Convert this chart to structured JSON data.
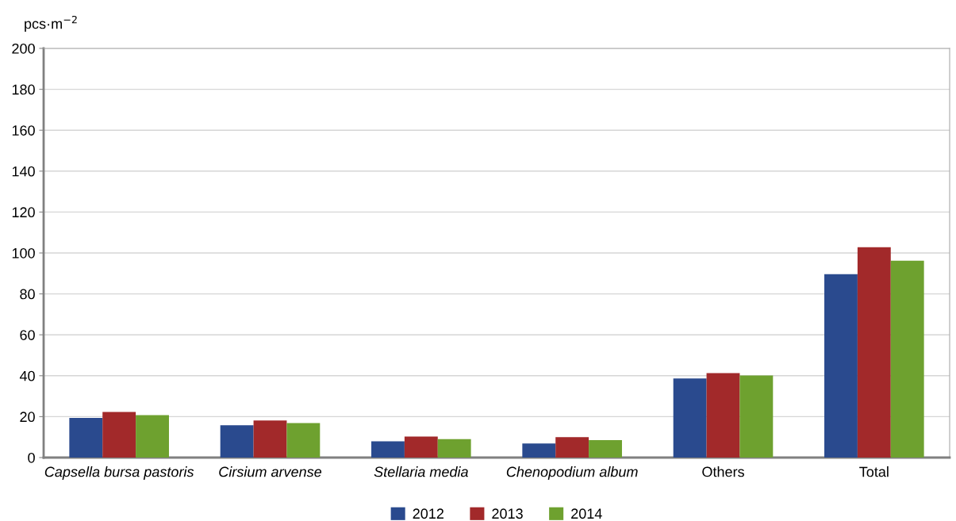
{
  "chart_data": {
    "type": "bar",
    "ylabel": "pcs·m$^{−2}$",
    "categories": [
      "Capsella bursa pastoris",
      "Cirsium arvense",
      "Stellaria media",
      "Chenopodium album",
      "Others",
      "Total"
    ],
    "series": [
      {
        "name": "2012",
        "color": "#2a4a8e",
        "values": [
          19.4,
          15.8,
          7.9,
          6.9,
          38.7,
          89.6
        ]
      },
      {
        "name": "2013",
        "color": "#a2292a",
        "values": [
          22.3,
          18.1,
          10.3,
          10.0,
          41.3,
          102.8
        ]
      },
      {
        "name": "2014",
        "color": "#6ea12f",
        "values": [
          20.7,
          16.9,
          9.0,
          8.5,
          40.1,
          96.2
        ]
      }
    ],
    "ylim": [
      0,
      200
    ],
    "yticks": [
      0,
      20,
      40,
      60,
      80,
      100,
      120,
      140,
      160,
      180,
      200
    ],
    "grid": "y",
    "legend": "bottom"
  }
}
